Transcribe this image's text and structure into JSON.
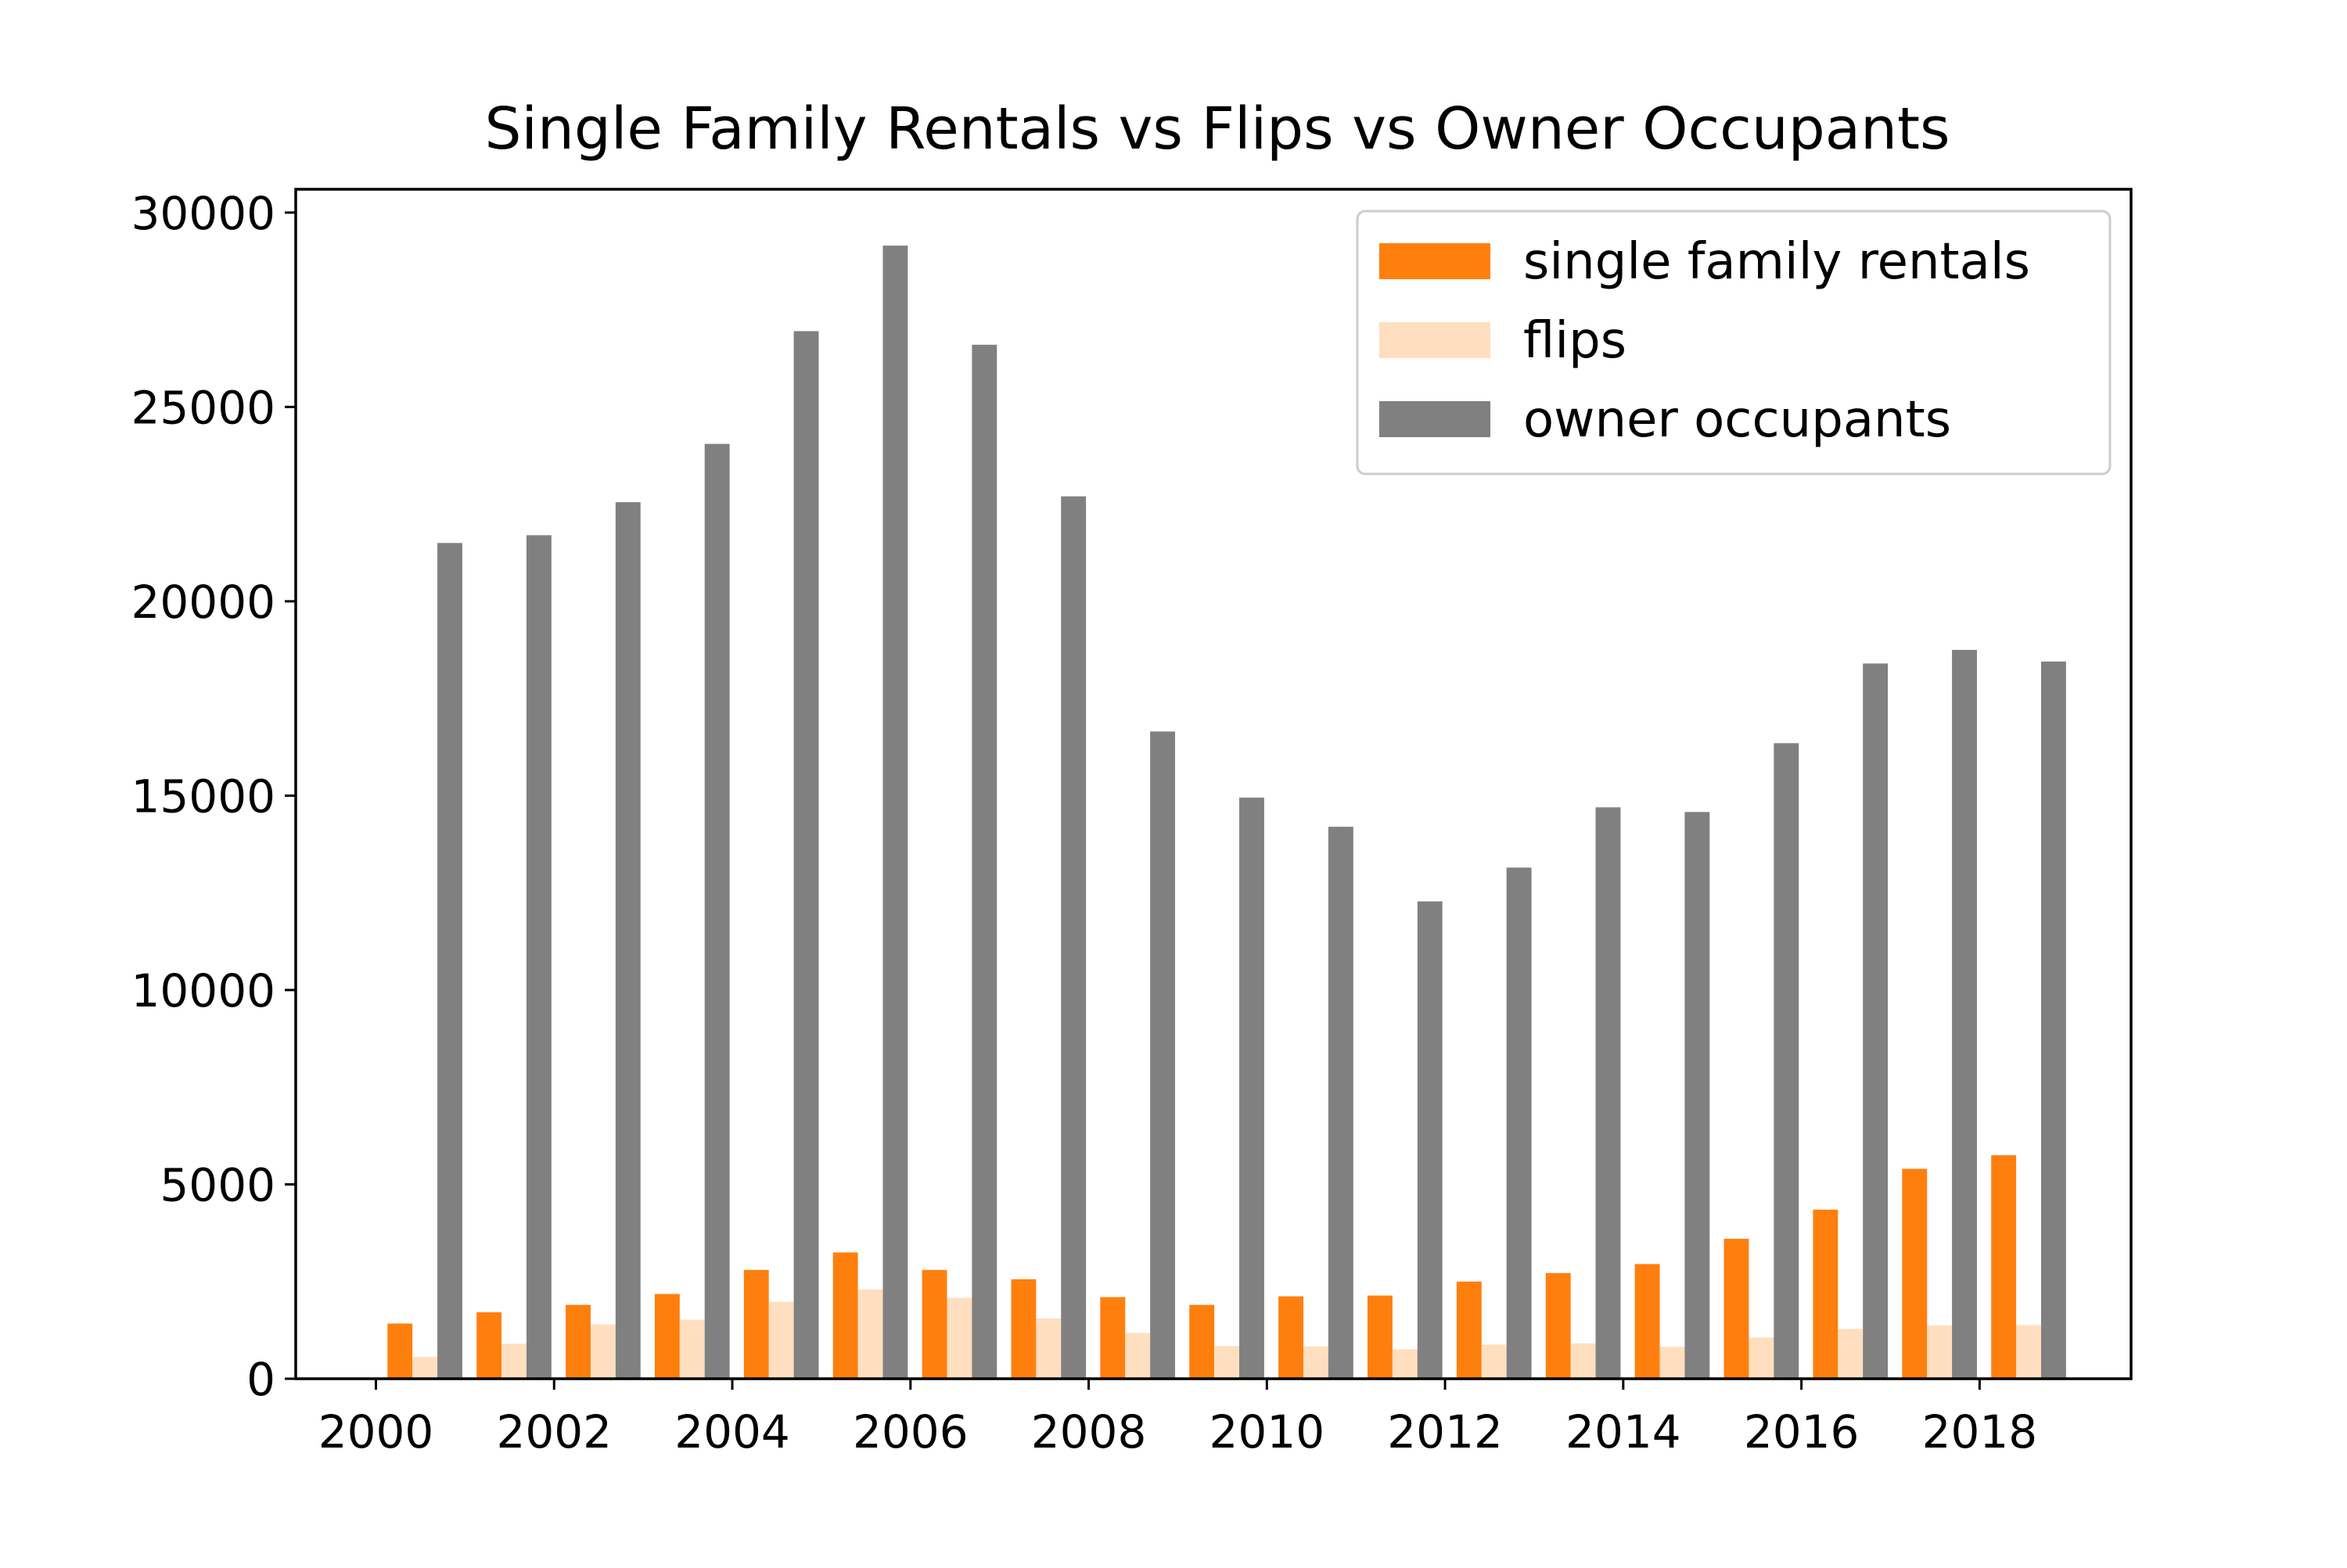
{
  "chart_data": {
    "type": "bar",
    "title": "Single Family Rentals vs Flips vs Owner Occupants",
    "xlabel": "",
    "ylabel": "",
    "x": [
      2000,
      2001,
      2002,
      2003,
      2004,
      2005,
      2006,
      2007,
      2008,
      2009,
      2010,
      2011,
      2012,
      2013,
      2014,
      2015,
      2016,
      2017,
      2018
    ],
    "xlim": [
      1999.1,
      2019.7
    ],
    "ylim": [
      0,
      30600
    ],
    "x_ticks": [
      "2000",
      "2002",
      "2004",
      "2006",
      "2008",
      "2010",
      "2012",
      "2014",
      "2016",
      "2018"
    ],
    "y_ticks": [
      "0",
      "5000",
      "10000",
      "15000",
      "20000",
      "25000",
      "30000"
    ],
    "grid": false,
    "legend_position": "top-right",
    "series": [
      {
        "name": "single family rentals",
        "color": "#ff7f0e",
        "values": [
          1420,
          1710,
          1900,
          2180,
          2800,
          3250,
          2800,
          2560,
          2100,
          1900,
          2120,
          2140,
          2500,
          2720,
          2950,
          3600,
          4350,
          5400,
          5750
        ]
      },
      {
        "name": "flips",
        "color": "#ffdfbf",
        "values": [
          560,
          900,
          1400,
          1520,
          1980,
          2300,
          2080,
          1550,
          1180,
          840,
          830,
          760,
          880,
          910,
          820,
          1060,
          1280,
          1370,
          1380
        ]
      },
      {
        "name": "owner occupants",
        "color": "#808080",
        "values": [
          21500,
          21700,
          22550,
          24050,
          26950,
          29150,
          26600,
          22700,
          16650,
          14950,
          14200,
          12280,
          13150,
          14700,
          14580,
          16350,
          18400,
          18750,
          18450
        ]
      }
    ]
  }
}
